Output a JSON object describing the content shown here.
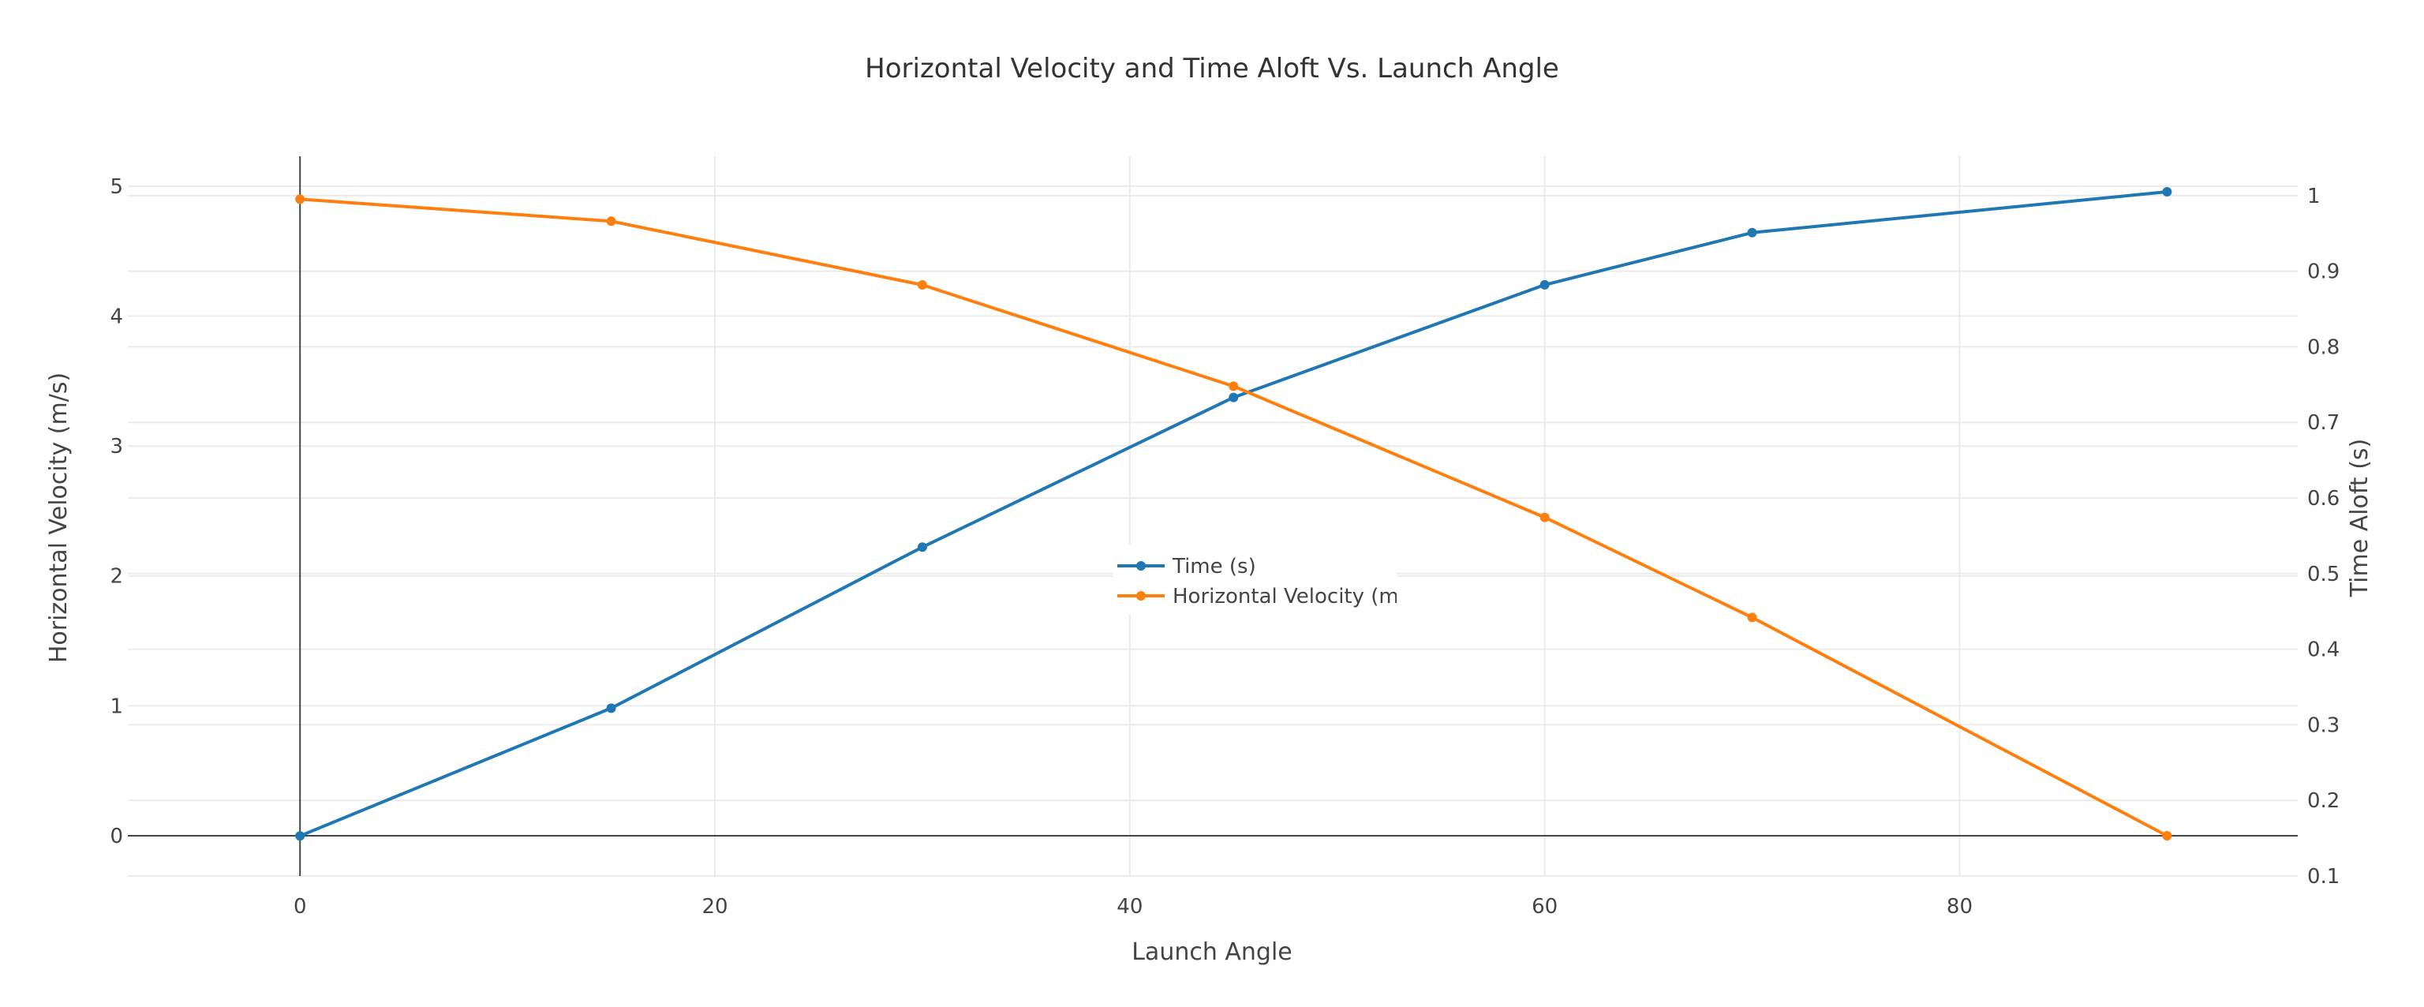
{
  "chart_data": {
    "type": "line",
    "title": "Horizontal Velocity and Time Aloft Vs. Launch Angle",
    "xlabel": "Launch Angle",
    "ylabel": "Horizontal Velocity (m/s)",
    "y2label": "Time Aloft (s)",
    "xlim": [
      -8.3,
      96.3
    ],
    "ylim": [
      -0.31,
      5.23
    ],
    "y2lim": [
      0.1,
      1.052
    ],
    "x_ticks": [
      0,
      20,
      40,
      60,
      80
    ],
    "y_ticks": [
      0,
      1,
      2,
      3,
      4,
      5
    ],
    "y2_ticks": [
      0.1,
      0.2,
      0.3,
      0.4,
      0.5,
      0.6,
      0.7,
      0.8,
      0.9,
      1
    ],
    "grid": true,
    "legend_position": "center",
    "series": [
      {
        "name": "Time (s)",
        "axis": "y2",
        "color": "#1f77b4",
        "x": [
          0,
          15,
          30,
          45,
          60,
          70,
          90
        ],
        "y": [
          0.153,
          0.322,
          0.535,
          0.733,
          0.882,
          0.951,
          1.005
        ]
      },
      {
        "name": "Horizontal Velocity (m/s)",
        "legend_label": "Horizontal Velocity (m/s",
        "axis": "y",
        "color": "#ff7f0e",
        "x": [
          0,
          15,
          30,
          45,
          60,
          70,
          90
        ],
        "y": [
          4.9,
          4.73,
          4.24,
          3.46,
          2.45,
          1.68,
          0.0
        ]
      }
    ]
  }
}
